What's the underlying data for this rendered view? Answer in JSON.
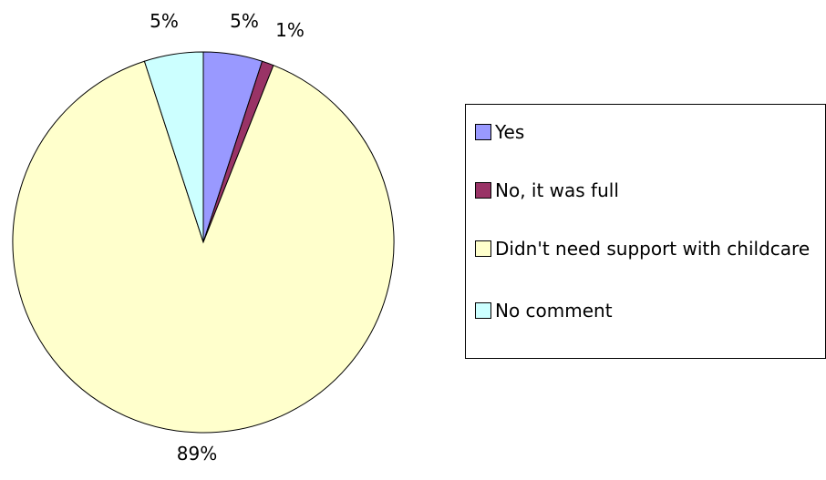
{
  "chart_data": {
    "type": "pie",
    "slices": [
      {
        "label": "Yes",
        "value": 5,
        "value_label": "5%",
        "color": "#9999ff"
      },
      {
        "label": "No, it was full",
        "value": 1,
        "value_label": "1%",
        "color": "#993366"
      },
      {
        "label": "Didn't need support with childcare",
        "value": 89,
        "value_label": "89%",
        "color": "#ffffcc"
      },
      {
        "label": "No comment",
        "value": 5,
        "value_label": "5%",
        "color": "#ccffff"
      }
    ],
    "legend_position": "right"
  }
}
